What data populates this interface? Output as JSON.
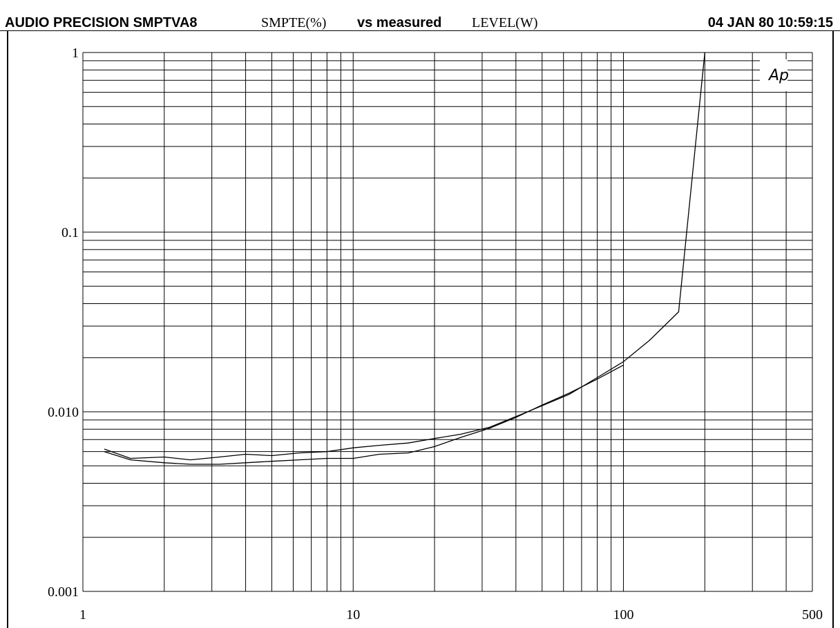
{
  "header": {
    "brand": "AUDIO PRECISION SMPTVA8",
    "y_quantity": "SMPTE(%)",
    "vs": "vs measured",
    "x_quantity": "LEVEL(W)",
    "timestamp": "04 JAN 80 10:59:15"
  },
  "logo_text": "Ap",
  "chart_data": {
    "type": "line",
    "title": "AUDIO PRECISION SMPTVA8",
    "xlabel": "LEVEL(W)",
    "ylabel": "SMPTE(%)",
    "x_scale": "log",
    "y_scale": "log",
    "xlim": [
      1,
      500
    ],
    "ylim": [
      0.001,
      1
    ],
    "grid": true,
    "x_ticks": [
      {
        "value": 1,
        "label": "1"
      },
      {
        "value": 10,
        "label": "10"
      },
      {
        "value": 100,
        "label": "100"
      },
      {
        "value": 500,
        "label": "500"
      }
    ],
    "y_ticks": [
      {
        "value": 1,
        "label": "1"
      },
      {
        "value": 0.1,
        "label": "0.1"
      },
      {
        "value": 0.01,
        "label": "0.010"
      },
      {
        "value": 0.001,
        "label": "0.001"
      }
    ],
    "line_color": "#000000",
    "series": [
      {
        "x": [
          1.2,
          1.5,
          2.0,
          2.5,
          3.2,
          4.0,
          5.0,
          6.3,
          8.0,
          10,
          12.5,
          16,
          20,
          25,
          32,
          40,
          50,
          63,
          80,
          100,
          125,
          160,
          200
        ],
        "y": [
          0.0062,
          0.0055,
          0.0056,
          0.0054,
          0.0056,
          0.0058,
          0.0057,
          0.0059,
          0.006,
          0.0063,
          0.0065,
          0.0067,
          0.0071,
          0.0075,
          0.0082,
          0.0094,
          0.0108,
          0.0125,
          0.0155,
          0.019,
          0.025,
          0.036,
          1.0
        ]
      },
      {
        "x": [
          1.2,
          1.5,
          2.0,
          2.5,
          3.2,
          4.0,
          5.0,
          6.3,
          8.0,
          10,
          12.5,
          16,
          20,
          25,
          32,
          40,
          50,
          63,
          80,
          100
        ],
        "y": [
          0.006,
          0.0054,
          0.0052,
          0.0051,
          0.0051,
          0.0052,
          0.0053,
          0.0054,
          0.0055,
          0.0055,
          0.0058,
          0.0059,
          0.0064,
          0.0072,
          0.0081,
          0.0093,
          0.0109,
          0.0127,
          0.0152,
          0.0182
        ]
      }
    ]
  }
}
